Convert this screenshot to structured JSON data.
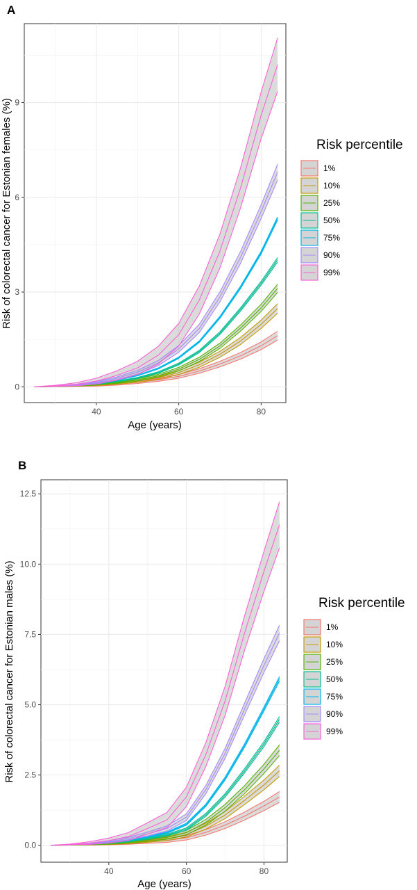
{
  "chart_data": [
    {
      "type": "line",
      "panel_label": "A",
      "xlabel": "Age (years)",
      "ylabel": "Risk of colorectal cancer for Estonian females (%)",
      "xlim": [
        22.5,
        86
      ],
      "ylim": [
        -0.5,
        11.5
      ],
      "xticks": [
        40,
        60,
        80
      ],
      "yticks": [
        0,
        3,
        6,
        9
      ],
      "ytick_labels": [
        "0",
        "3",
        "6",
        "9"
      ],
      "grid": true,
      "legend": {
        "title": "Risk percentile",
        "position": "right"
      },
      "x": [
        25,
        30,
        35,
        40,
        45,
        50,
        55,
        60,
        65,
        70,
        75,
        80,
        84
      ],
      "series": [
        {
          "name": "1%",
          "color": "#F8766D",
          "values": [
            0,
            0.01,
            0.02,
            0.04,
            0.08,
            0.14,
            0.22,
            0.33,
            0.5,
            0.72,
            0.98,
            1.3,
            1.62
          ],
          "band": 0.14
        },
        {
          "name": "10%",
          "color": "#C49A00",
          "values": [
            0,
            0.01,
            0.03,
            0.06,
            0.11,
            0.18,
            0.29,
            0.45,
            0.7,
            1.03,
            1.45,
            1.98,
            2.48
          ],
          "band": 0.15
        },
        {
          "name": "25%",
          "color": "#53B400",
          "values": [
            0,
            0.01,
            0.03,
            0.07,
            0.13,
            0.22,
            0.35,
            0.56,
            0.87,
            1.3,
            1.86,
            2.5,
            3.12
          ],
          "band": 0.13
        },
        {
          "name": "50%",
          "color": "#00C094",
          "values": [
            0,
            0.02,
            0.04,
            0.09,
            0.17,
            0.28,
            0.45,
            0.72,
            1.12,
            1.7,
            2.45,
            3.28,
            4.02
          ],
          "band": 0.07
        },
        {
          "name": "75%",
          "color": "#00B6EB",
          "values": [
            0,
            0.02,
            0.05,
            0.11,
            0.21,
            0.36,
            0.58,
            0.92,
            1.43,
            2.2,
            3.15,
            4.25,
            5.33
          ],
          "band": 0.05
        },
        {
          "name": "90%",
          "color": "#A58AFF",
          "values": [
            0,
            0.02,
            0.06,
            0.14,
            0.27,
            0.46,
            0.75,
            1.2,
            1.85,
            2.85,
            4.1,
            5.55,
            6.8
          ],
          "band": 0.25
        },
        {
          "name": "99%",
          "color": "#FB61D7",
          "values": [
            0,
            0.03,
            0.08,
            0.18,
            0.36,
            0.6,
            1.0,
            1.65,
            2.75,
            4.3,
            6.3,
            8.6,
            10.2
          ],
          "band": 0.85
        }
      ]
    },
    {
      "type": "line",
      "panel_label": "B",
      "xlabel": "Age (years)",
      "ylabel": "Risk of colorectal cancer for Estonian males (%)",
      "xlim": [
        22.5,
        86
      ],
      "ylim": [
        -0.6,
        13.0
      ],
      "xticks": [
        40,
        60,
        80
      ],
      "yticks": [
        0,
        2.5,
        5,
        7.5,
        10,
        12.5
      ],
      "ytick_labels": [
        "0.0",
        "2.5",
        "5.0",
        "7.5",
        "10.0",
        "12.5"
      ],
      "grid": true,
      "legend": {
        "title": "Risk percentile",
        "position": "right"
      },
      "x": [
        25,
        30,
        35,
        40,
        45,
        50,
        55,
        60,
        65,
        70,
        75,
        80,
        84
      ],
      "series": [
        {
          "name": "1%",
          "color": "#F8766D",
          "values": [
            0,
            0.01,
            0.02,
            0.04,
            0.07,
            0.12,
            0.17,
            0.27,
            0.46,
            0.72,
            1.04,
            1.4,
            1.72
          ],
          "band": 0.19
        },
        {
          "name": "10%",
          "color": "#C49A00",
          "values": [
            0,
            0.01,
            0.03,
            0.05,
            0.09,
            0.16,
            0.24,
            0.38,
            0.68,
            1.08,
            1.6,
            2.15,
            2.65
          ],
          "band": 0.2
        },
        {
          "name": "25%",
          "color": "#53B400",
          "values": [
            0,
            0.01,
            0.03,
            0.06,
            0.11,
            0.19,
            0.28,
            0.45,
            0.82,
            1.34,
            1.98,
            2.72,
            3.38
          ],
          "band": 0.19
        },
        {
          "name": "50%",
          "color": "#00C094",
          "values": [
            0,
            0.02,
            0.04,
            0.08,
            0.14,
            0.24,
            0.36,
            0.58,
            1.08,
            1.78,
            2.65,
            3.6,
            4.48
          ],
          "band": 0.1
        },
        {
          "name": "75%",
          "color": "#00B6EB",
          "values": [
            0,
            0.02,
            0.05,
            0.1,
            0.18,
            0.3,
            0.45,
            0.75,
            1.42,
            2.38,
            3.55,
            4.85,
            5.92
          ],
          "band": 0.08
        },
        {
          "name": "90%",
          "color": "#A58AFF",
          "values": [
            0,
            0.02,
            0.06,
            0.13,
            0.24,
            0.4,
            0.6,
            1.0,
            1.98,
            3.28,
            4.85,
            6.4,
            7.55
          ],
          "band": 0.28
        },
        {
          "name": "99%",
          "color": "#FB61D7",
          "values": [
            0,
            0.03,
            0.08,
            0.17,
            0.31,
            0.6,
            0.9,
            1.72,
            3.22,
            5.15,
            7.55,
            9.75,
            11.4
          ],
          "band": 0.82
        }
      ]
    }
  ]
}
